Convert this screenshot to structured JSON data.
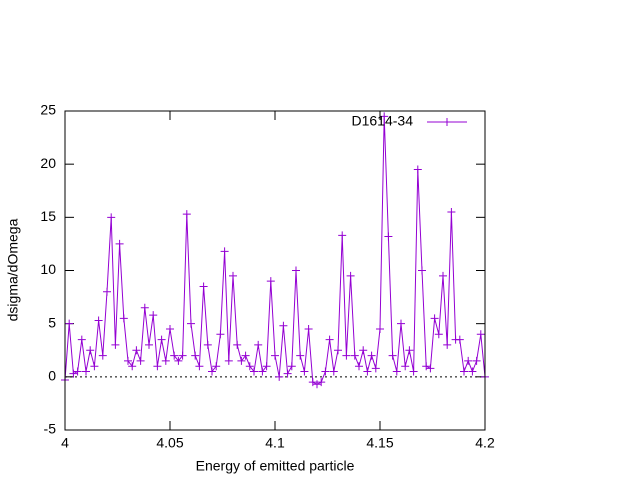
{
  "chart_data": {
    "type": "line",
    "x_label": "Energy of emitted particle",
    "y_label": "dsigma/dOmega",
    "x": [
      4.0,
      4.002,
      4.004,
      4.006,
      4.008,
      4.01,
      4.012,
      4.014,
      4.016,
      4.018,
      4.02,
      4.022,
      4.024,
      4.026,
      4.028,
      4.03,
      4.032,
      4.034,
      4.036,
      4.038,
      4.04,
      4.042,
      4.044,
      4.046,
      4.048,
      4.05,
      4.052,
      4.054,
      4.056,
      4.058,
      4.06,
      4.062,
      4.064,
      4.066,
      4.068,
      4.07,
      4.072,
      4.074,
      4.076,
      4.078,
      4.08,
      4.082,
      4.084,
      4.086,
      4.088,
      4.09,
      4.092,
      4.094,
      4.096,
      4.098,
      4.1,
      4.102,
      4.104,
      4.106,
      4.108,
      4.11,
      4.112,
      4.114,
      4.116,
      4.118,
      4.12,
      4.122,
      4.124,
      4.126,
      4.128,
      4.13,
      4.132,
      4.134,
      4.136,
      4.138,
      4.14,
      4.142,
      4.144,
      4.146,
      4.148,
      4.15,
      4.152,
      4.154,
      4.156,
      4.158,
      4.16,
      4.162,
      4.164,
      4.166,
      4.168,
      4.17,
      4.172,
      4.174,
      4.176,
      4.178,
      4.18,
      4.182,
      4.184,
      4.186,
      4.188,
      4.19,
      4.192,
      4.194,
      4.196,
      4.198,
      4.2
    ],
    "series": [
      {
        "name": "D1614-34",
        "color": "#9400d3",
        "values": [
          -0.3,
          5,
          0.3,
          0.5,
          3.5,
          0.5,
          2.5,
          1,
          5.3,
          2,
          8,
          15,
          3,
          12.5,
          5.5,
          1.5,
          1,
          2.5,
          1.5,
          6.5,
          3,
          5.8,
          1,
          3.5,
          1.5,
          4.5,
          2,
          1.5,
          2,
          15.3,
          5,
          2,
          1,
          8.5,
          3,
          0.5,
          1,
          4,
          11.8,
          1.5,
          9.5,
          3,
          1.5,
          2,
          1,
          0.5,
          3,
          0.5,
          1,
          9,
          2,
          0,
          4.8,
          0.3,
          1,
          10,
          2,
          0.5,
          4.5,
          -0.5,
          -0.7,
          -0.5,
          0.5,
          3.5,
          0.5,
          2.5,
          13.3,
          2,
          9.5,
          2,
          1,
          2.5,
          0.5,
          2,
          0.8,
          4.5,
          24.5,
          13.2,
          2,
          0.5,
          5,
          1,
          2.5,
          0.5,
          19.5,
          10,
          1,
          0.8,
          5.5,
          4,
          9.5,
          3,
          15.5,
          3.5,
          3.5,
          0.5,
          1.5,
          0.5,
          1.5,
          4,
          0
        ]
      }
    ],
    "xlim": [
      4,
      4.2
    ],
    "xticks": [
      4,
      4.05,
      4.1,
      4.15,
      4.2
    ],
    "ylim": [
      -5,
      25
    ],
    "yticks": [
      -5,
      0,
      5,
      10,
      15,
      20,
      25
    ],
    "zero_line": true,
    "legend": "top-right"
  }
}
